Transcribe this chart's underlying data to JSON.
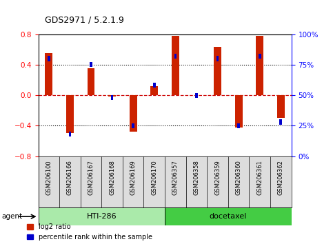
{
  "title": "GDS2971 / 5.2.1.9",
  "samples": [
    "GSM206100",
    "GSM206166",
    "GSM206167",
    "GSM206168",
    "GSM206169",
    "GSM206170",
    "GSM206357",
    "GSM206358",
    "GSM206359",
    "GSM206360",
    "GSM206361",
    "GSM206362"
  ],
  "log2_ratios": [
    0.55,
    -0.5,
    0.35,
    -0.02,
    -0.48,
    0.12,
    0.78,
    0.0,
    0.63,
    -0.42,
    0.78,
    -0.3
  ],
  "percentile_ranks": [
    80,
    18,
    75,
    48,
    25,
    58,
    82,
    50,
    80,
    25,
    82,
    28
  ],
  "groups": [
    {
      "label": "HTI-286",
      "start": 0,
      "end": 6,
      "color": "#AAEAAA"
    },
    {
      "label": "docetaxel",
      "start": 6,
      "end": 12,
      "color": "#44CC44"
    }
  ],
  "agent_label": "agent",
  "left_ylim": [
    -0.8,
    0.8
  ],
  "left_yticks": [
    -0.8,
    -0.4,
    0.0,
    0.4,
    0.8
  ],
  "right_ylim": [
    0,
    100
  ],
  "right_yticks": [
    0,
    25,
    50,
    75,
    100
  ],
  "right_yticklabels": [
    "0%",
    "25%",
    "50%",
    "75%",
    "100%"
  ],
  "bar_color": "#CC2200",
  "percentile_color": "#0000CC",
  "red_bar_width": 0.35,
  "blue_bar_width": 0.12,
  "zero_line_color": "#CC0000",
  "legend_red_label": "log2 ratio",
  "legend_blue_label": "percentile rank within the sample"
}
